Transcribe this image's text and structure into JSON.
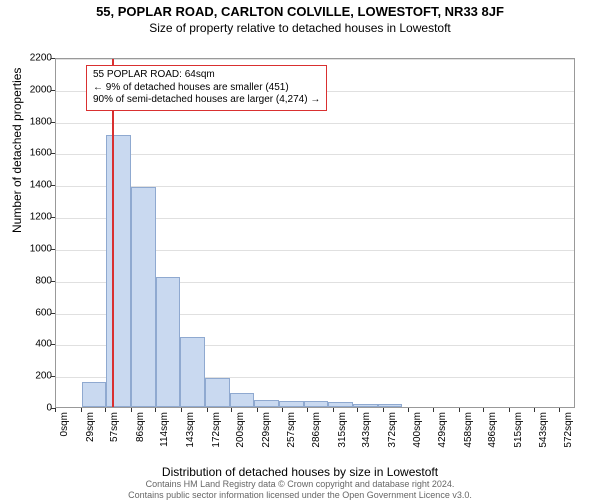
{
  "title": "55, POPLAR ROAD, CARLTON COLVILLE, LOWESTOFT, NR33 8JF",
  "subtitle": "Size of property relative to detached houses in Lowestoft",
  "chart": {
    "type": "histogram",
    "ylabel": "Number of detached properties",
    "xlabel": "Distribution of detached houses by size in Lowestoft",
    "ylim": [
      0,
      2200
    ],
    "ytick_step": 200,
    "yticks": [
      0,
      200,
      400,
      600,
      800,
      1000,
      1200,
      1400,
      1600,
      1800,
      2000,
      2200
    ],
    "xticks": [
      "0sqm",
      "29sqm",
      "57sqm",
      "86sqm",
      "114sqm",
      "143sqm",
      "172sqm",
      "200sqm",
      "229sqm",
      "257sqm",
      "286sqm",
      "315sqm",
      "343sqm",
      "372sqm",
      "400sqm",
      "429sqm",
      "458sqm",
      "486sqm",
      "515sqm",
      "543sqm",
      "572sqm"
    ],
    "xtick_positions_sqm": [
      0,
      29,
      57,
      86,
      114,
      143,
      172,
      200,
      229,
      257,
      286,
      315,
      343,
      372,
      400,
      429,
      458,
      486,
      515,
      543,
      572
    ],
    "x_max_sqm": 590,
    "bars": [
      {
        "x_sqm": 29,
        "width_sqm": 28,
        "count": 160
      },
      {
        "x_sqm": 57,
        "width_sqm": 28,
        "count": 1710
      },
      {
        "x_sqm": 85,
        "width_sqm": 28,
        "count": 1380
      },
      {
        "x_sqm": 113,
        "width_sqm": 28,
        "count": 820
      },
      {
        "x_sqm": 141,
        "width_sqm": 28,
        "count": 440
      },
      {
        "x_sqm": 169,
        "width_sqm": 28,
        "count": 180
      },
      {
        "x_sqm": 197,
        "width_sqm": 28,
        "count": 90
      },
      {
        "x_sqm": 225,
        "width_sqm": 28,
        "count": 45
      },
      {
        "x_sqm": 253,
        "width_sqm": 28,
        "count": 40
      },
      {
        "x_sqm": 281,
        "width_sqm": 28,
        "count": 35
      },
      {
        "x_sqm": 309,
        "width_sqm": 28,
        "count": 30
      },
      {
        "x_sqm": 337,
        "width_sqm": 28,
        "count": 20
      },
      {
        "x_sqm": 365,
        "width_sqm": 28,
        "count": 20
      }
    ],
    "bar_fill": "#c9d9f0",
    "bar_border": "#8fa9d0",
    "marker_sqm": 64,
    "marker_color": "#d93030",
    "grid_color": "#e0e0e0",
    "background": "#ffffff",
    "info_box": {
      "line1": "55 POPLAR ROAD: 64sqm",
      "line2": "← 9% of detached houses are smaller (451)",
      "line3": "90% of semi-detached houses are larger (4,274) →",
      "border_color": "#d93030"
    },
    "title_fontsize": 13,
    "subtitle_fontsize": 12,
    "axis_label_fontsize": 12,
    "tick_label_fontsize": 10,
    "info_fontsize": 10
  },
  "attribution": {
    "line1": "Contains HM Land Registry data © Crown copyright and database right 2024.",
    "line2": "Contains public sector information licensed under the Open Government Licence v3.0.",
    "fontsize": 9,
    "color": "#666666"
  }
}
